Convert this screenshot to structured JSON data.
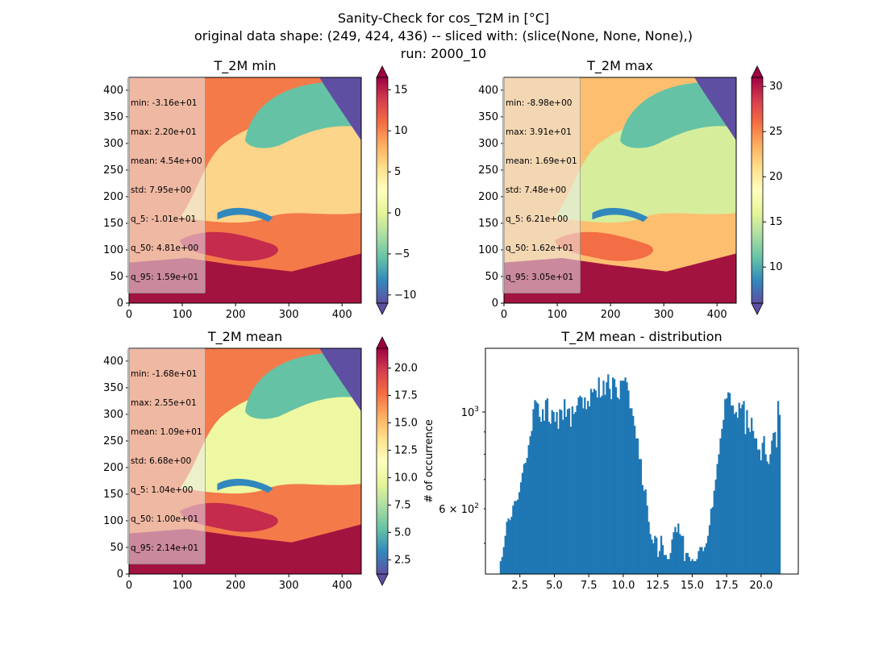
{
  "figure": {
    "title_lines": [
      "Sanity-Check for cos_T2M in [°C]",
      "original data shape: (249, 424, 436) -- sliced with: (slice(None, None, None),)",
      "run: 2000_10"
    ]
  },
  "colors": {
    "hist_bar": "#1f77b4",
    "colormap": "Spectral_r",
    "colormap_stops": [
      "#5e4fa2",
      "#3288bd",
      "#66c2a5",
      "#abdda4",
      "#e6f598",
      "#ffffbf",
      "#fee08b",
      "#fdae61",
      "#f46d43",
      "#d53e4f",
      "#9e0142"
    ]
  },
  "chart_data": [
    {
      "type": "heatmap",
      "id": "min",
      "title": "T_2M min",
      "x_ticks": [
        "0",
        "100",
        "200",
        "300",
        "400"
      ],
      "y_ticks": [
        "0",
        "50",
        "100",
        "150",
        "200",
        "250",
        "300",
        "350",
        "400"
      ],
      "xlim": [
        0,
        436
      ],
      "ylim": [
        0,
        424
      ],
      "colorbar": {
        "range": [
          -11,
          16.5
        ],
        "ticks": [
          "−10",
          "−5",
          "0",
          "5",
          "10",
          "15"
        ],
        "tick_values": [
          -10,
          -5,
          0,
          5,
          10,
          15
        ],
        "extend": "both"
      },
      "stats": [
        "min: -3.16e+01",
        "max: 2.20e+01",
        "mean: 4.54e+00",
        "std: 7.95e+00",
        "q_5: -1.01e+01",
        "q_50: 4.81e+00",
        "q_95: 1.59e+01"
      ]
    },
    {
      "type": "heatmap",
      "id": "max",
      "title": "T_2M max",
      "x_ticks": [
        "0",
        "100",
        "200",
        "300",
        "400"
      ],
      "y_ticks": [
        "0",
        "50",
        "100",
        "150",
        "200",
        "250",
        "300",
        "350",
        "400"
      ],
      "xlim": [
        0,
        436
      ],
      "ylim": [
        0,
        424
      ],
      "colorbar": {
        "range": [
          6,
          31
        ],
        "ticks": [
          "10",
          "15",
          "20",
          "25",
          "30"
        ],
        "tick_values": [
          10,
          15,
          20,
          25,
          30
        ],
        "extend": "both"
      },
      "stats": [
        "min: -8.98e+00",
        "max: 3.91e+01",
        "mean: 1.69e+01",
        "std: 7.48e+00",
        "q_5: 6.21e+00",
        "q_50: 1.62e+01",
        "q_95: 3.05e+01"
      ]
    },
    {
      "type": "heatmap",
      "id": "mean",
      "title": "T_2M mean",
      "x_ticks": [
        "0",
        "100",
        "200",
        "300",
        "400"
      ],
      "y_ticks": [
        "0",
        "50",
        "100",
        "150",
        "200",
        "250",
        "300",
        "350",
        "400"
      ],
      "xlim": [
        0,
        436
      ],
      "ylim": [
        0,
        424
      ],
      "colorbar": {
        "range": [
          1.2,
          21.8
        ],
        "ticks": [
          "2.5",
          "5.0",
          "7.5",
          "10.0",
          "12.5",
          "15.0",
          "17.5",
          "20.0"
        ],
        "tick_values": [
          2.5,
          5,
          7.5,
          10,
          12.5,
          15,
          17.5,
          20
        ],
        "extend": "both"
      },
      "stats": [
        "min: -1.68e+01",
        "max: 2.55e+01",
        "mean: 1.09e+01",
        "std: 6.68e+00",
        "q_5: 1.04e+00",
        "q_50: 1.00e+01",
        "q_95: 2.14e+01"
      ]
    },
    {
      "type": "bar",
      "id": "dist",
      "title": "T_2M mean - distribution",
      "ylabel": "# of occurrence",
      "xlim": [
        0,
        22.7
      ],
      "ylim": [
        425,
        1400
      ],
      "yscale": "log",
      "x_ticks": [
        "2.5",
        "5.0",
        "7.5",
        "10.0",
        "12.5",
        "15.0",
        "17.5",
        "20.0"
      ],
      "x_tick_values": [
        2.5,
        5,
        7.5,
        10,
        12.5,
        15,
        17.5,
        20
      ],
      "y_ticks_major": [
        "10³"
      ],
      "y_ticks_major_values": [
        1000
      ],
      "y_ticks_minor": [
        "6 × 10²"
      ],
      "y_ticks_minor_values": [
        600
      ],
      "bin_edges": [
        1.04,
        21.4
      ],
      "values": [
        455,
        465,
        490,
        520,
        560,
        570,
        565,
        575,
        610,
        625,
        625,
        630,
        655,
        690,
        725,
        760,
        765,
        785,
        840,
        880,
        905,
        1015,
        1065,
        1055,
        1045,
        975,
        950,
        1015,
        955,
        1065,
        1075,
        950,
        940,
        1010,
        1000,
        950,
        1000,
        915,
        1015,
        1010,
        960,
        1070,
        975,
        1015,
        1020,
        925,
        1030,
        990,
        1000,
        1035,
        1080,
        1090,
        1080,
        1020,
        1080,
        1015,
        1060,
        1030,
        1130,
        1110,
        1130,
        1120,
        1080,
        1200,
        1080,
        1090,
        1180,
        1095,
        1170,
        1220,
        1130,
        1070,
        1200,
        1190,
        1140,
        1080,
        1070,
        1180,
        1180,
        1180,
        1200,
        1170,
        1120,
        1020,
        1020,
        980,
        930,
        870,
        870,
        780,
        780,
        680,
        660,
        665,
        610,
        560,
        525,
        510,
        500,
        520,
        515,
        465,
        480,
        520,
        495,
        470,
        470,
        460,
        460,
        475,
        510,
        530,
        545,
        530,
        555,
        525,
        520,
        520,
        455,
        475,
        475,
        465,
        455,
        460,
        455,
        455,
        460,
        480,
        490,
        490,
        480,
        490,
        500,
        520,
        550,
        600,
        605,
        660,
        700,
        760,
        800,
        870,
        915,
        960,
        1070,
        1075,
        1110,
        1105,
        1035,
        1035,
        990,
        1000,
        970,
        1050,
        1020,
        1040,
        1060,
        890,
        1010,
        920,
        900,
        970,
        905,
        870,
        870,
        820,
        820,
        775,
        850,
        880,
        800,
        770,
        760,
        800,
        860,
        895,
        900,
        830,
        1060,
        985
      ]
    }
  ]
}
